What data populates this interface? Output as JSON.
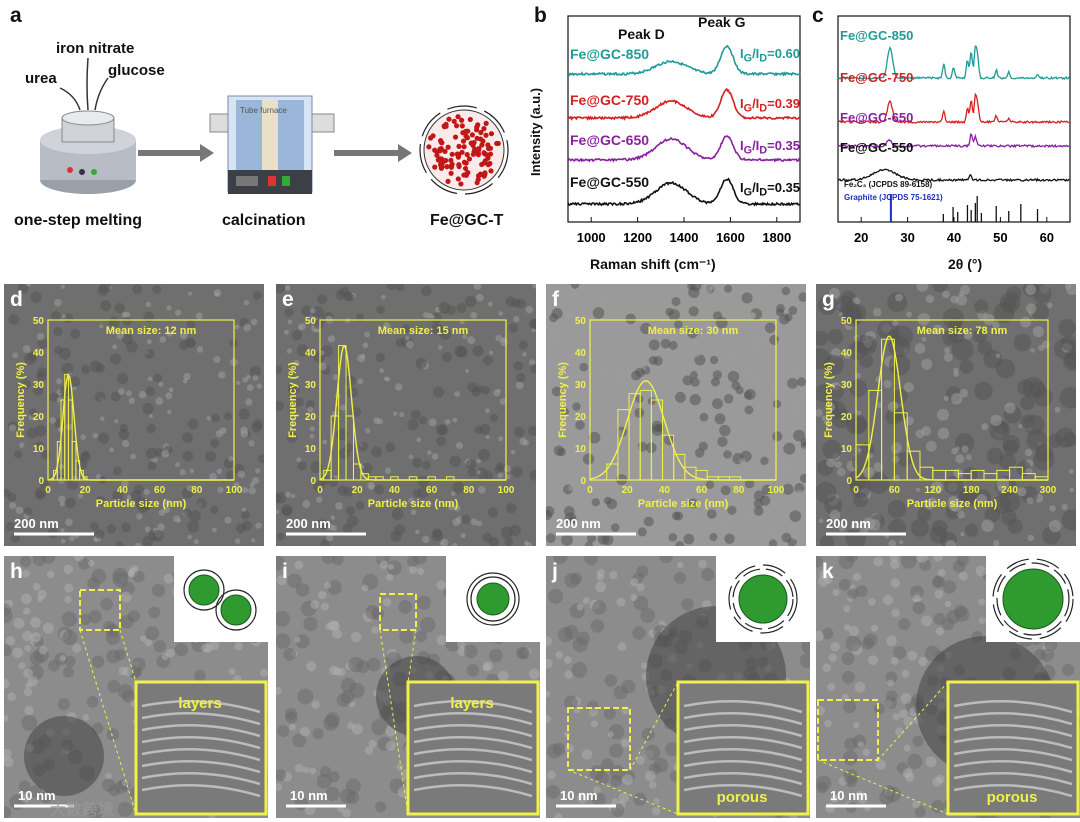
{
  "panel_a": {
    "letter": "a",
    "inputs": [
      "urea",
      "iron nitrate",
      "glucose"
    ],
    "furnace_label": "Tube furnace",
    "steps": [
      "one-step melting",
      "calcination",
      "Fe@GC-T"
    ]
  },
  "panel_b": {
    "letter": "b",
    "peak_labels": [
      "Peak D",
      "Peak G"
    ],
    "ratio_prefix": "I",
    "ratio_sub": "G",
    "ratio_mid": "/I",
    "ratio_sub2": "D",
    "colors": {
      "550": "#111111",
      "650": "#8a1fa0",
      "750": "#d42020",
      "850": "#1f9a96"
    }
  },
  "panel_c": {
    "letter": "c",
    "ref_fe": "Fe₂C₃ (JCPDS 89-6158)",
    "ref_graphite": "Graphite (JCPDS 75-1621)"
  },
  "chart_data": [
    {
      "type": "line",
      "id": "raman",
      "xlabel": "Raman shift (cm⁻¹)",
      "ylabel": "Intensity (a.u.)",
      "xlim": [
        900,
        1900
      ],
      "xticks": [
        1000,
        1200,
        1400,
        1600,
        1800
      ],
      "series": [
        {
          "name": "Fe@GC-850",
          "ratio": "0.60",
          "d_peak": 1345,
          "g_peak": 1585,
          "d_height": 0.45,
          "g_height": 1.0
        },
        {
          "name": "Fe@GC-750",
          "ratio": "0.39",
          "d_peak": 1345,
          "g_peak": 1585,
          "d_height": 0.6,
          "g_height": 1.0
        },
        {
          "name": "Fe@GC-650",
          "ratio": "0.35",
          "d_peak": 1345,
          "g_peak": 1585,
          "d_height": 0.75,
          "g_height": 0.85
        },
        {
          "name": "Fe@GC-550",
          "ratio": "0.35",
          "d_peak": 1345,
          "g_peak": 1585,
          "d_height": 0.75,
          "g_height": 0.9
        }
      ]
    },
    {
      "type": "line",
      "id": "xrd",
      "xlabel": "2θ (°)",
      "ylabel": "Intensity (a.u.)",
      "xlim": [
        15,
        65
      ],
      "xticks": [
        20,
        30,
        40,
        50,
        60
      ],
      "series": [
        {
          "name": "Fe@GC-850",
          "peaks": [
            26.2,
            37.8,
            39.9,
            42.9,
            43.7,
            44.6,
            45.1,
            49.1,
            51.8,
            58.0
          ]
        },
        {
          "name": "Fe@GC-750",
          "peaks": [
            26.2,
            37.8,
            42.9,
            43.7,
            44.6,
            45.1,
            49.1,
            51.8
          ]
        },
        {
          "name": "Fe@GC-650",
          "peaks": [
            26.0,
            43.7,
            44.6
          ]
        },
        {
          "name": "Fe@GC-550",
          "peaks": [
            25.0,
            43.5
          ]
        }
      ],
      "reference": {
        "graphite": [
          26.4
        ],
        "fe": [
          37.7,
          39.8,
          40.8,
          42.9,
          43.7,
          44.6,
          45.0,
          45.9,
          49.1,
          51.8,
          54.4,
          58.0
        ]
      }
    },
    {
      "type": "bar",
      "id": "d",
      "title": "Mean size: 12 nm",
      "xlabel": "Particle size (nm)",
      "ylabel": "Frequency (%)",
      "xlim": [
        0,
        100
      ],
      "ylim": [
        0,
        50
      ],
      "xticks": [
        0,
        20,
        40,
        60,
        80,
        100
      ],
      "yticks": [
        0,
        10,
        20,
        30,
        40,
        50
      ],
      "bin_width": 2,
      "bins": [
        [
          4,
          3
        ],
        [
          6,
          12
        ],
        [
          8,
          25
        ],
        [
          10,
          33
        ],
        [
          12,
          25
        ],
        [
          14,
          12
        ],
        [
          16,
          6
        ],
        [
          18,
          3
        ],
        [
          20,
          1
        ]
      ],
      "fit": {
        "mu": 11,
        "sigma": 3,
        "peak": 33
      }
    },
    {
      "type": "bar",
      "id": "e",
      "title": "Mean size: 15 nm",
      "xlabel": "Particle size (nm)",
      "ylabel": "Frequency (%)",
      "xlim": [
        0,
        100
      ],
      "ylim": [
        0,
        50
      ],
      "xticks": [
        0,
        20,
        40,
        60,
        80,
        100
      ],
      "yticks": [
        0,
        10,
        20,
        30,
        40,
        50
      ],
      "bin_width": 4,
      "bins": [
        [
          4,
          3
        ],
        [
          8,
          20
        ],
        [
          12,
          42
        ],
        [
          16,
          20
        ],
        [
          20,
          5
        ],
        [
          24,
          2
        ],
        [
          28,
          1
        ],
        [
          32,
          1
        ],
        [
          40,
          1
        ],
        [
          50,
          1
        ],
        [
          60,
          1
        ],
        [
          70,
          1
        ]
      ],
      "fit": {
        "mu": 13,
        "sigma": 4,
        "peak": 42
      }
    },
    {
      "type": "bar",
      "id": "f",
      "title": "Mean size: 30 nm",
      "xlabel": "Particle size (nm)",
      "ylabel": "Frequency (%)",
      "xlim": [
        0,
        100
      ],
      "ylim": [
        0,
        50
      ],
      "xticks": [
        0,
        20,
        40,
        60,
        80,
        100
      ],
      "yticks": [
        0,
        10,
        20,
        30,
        40,
        50
      ],
      "bin_width": 6,
      "bins": [
        [
          12,
          5
        ],
        [
          18,
          22
        ],
        [
          24,
          27
        ],
        [
          30,
          28
        ],
        [
          36,
          25
        ],
        [
          42,
          14
        ],
        [
          48,
          8
        ],
        [
          54,
          4
        ],
        [
          60,
          3
        ],
        [
          66,
          1
        ],
        [
          72,
          1
        ],
        [
          78,
          1
        ]
      ],
      "fit": {
        "mu": 30,
        "sigma": 10,
        "peak": 31
      }
    },
    {
      "type": "bar",
      "id": "g",
      "title": "Mean size: 78 nm",
      "xlabel": "Particle size (nm)",
      "ylabel": "Frequency (%)",
      "xlim": [
        0,
        300
      ],
      "ylim": [
        0,
        50
      ],
      "xticks": [
        0,
        60,
        120,
        180,
        240,
        300
      ],
      "yticks": [
        0,
        10,
        20,
        30,
        40,
        50
      ],
      "bin_width": 20,
      "bins": [
        [
          10,
          11
        ],
        [
          30,
          28
        ],
        [
          50,
          44
        ],
        [
          70,
          21
        ],
        [
          90,
          9
        ],
        [
          110,
          4
        ],
        [
          130,
          3
        ],
        [
          150,
          3
        ],
        [
          170,
          2
        ],
        [
          190,
          3
        ],
        [
          210,
          2
        ],
        [
          230,
          3
        ],
        [
          250,
          4
        ],
        [
          270,
          2
        ],
        [
          290,
          1
        ]
      ],
      "fit": {
        "mu": 52,
        "sigma": 18,
        "peak": 45
      }
    }
  ],
  "tem_panels": [
    {
      "letter": "d",
      "scale": "200 nm"
    },
    {
      "letter": "e",
      "scale": "200 nm"
    },
    {
      "letter": "f",
      "scale": "200 nm"
    },
    {
      "letter": "g",
      "scale": "200 nm"
    }
  ],
  "hrtem_panels": [
    {
      "letter": "h",
      "scale": "10 nm",
      "inset": "layers"
    },
    {
      "letter": "i",
      "scale": "10 nm",
      "inset": "layers"
    },
    {
      "letter": "j",
      "scale": "10 nm",
      "inset": "porous"
    },
    {
      "letter": "k",
      "scale": "10 nm",
      "inset": "porous"
    }
  ],
  "watermark": "大数跨境"
}
